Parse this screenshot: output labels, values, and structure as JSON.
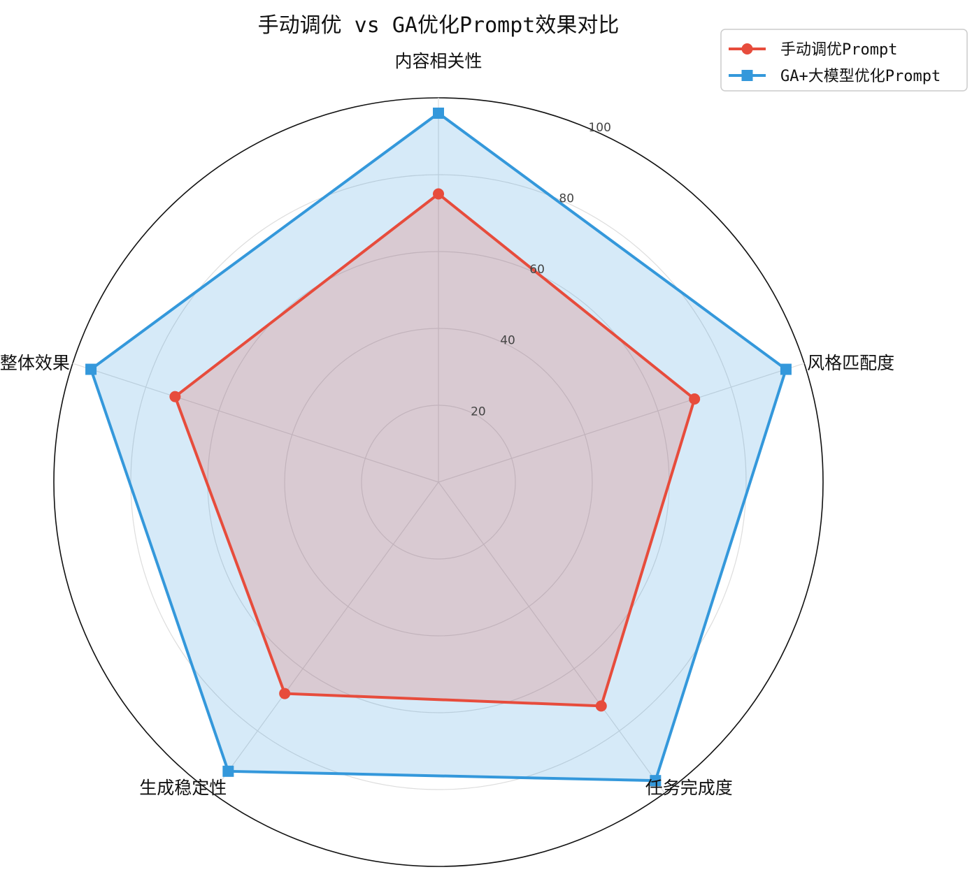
{
  "chart_data": {
    "type": "radar",
    "title": "手动调优 vs GA优化Prompt效果对比",
    "categories": [
      "内容相关性",
      "风格匹配度",
      "任务完成度",
      "生成稳定性",
      "整体效果"
    ],
    "rlim": [
      0,
      100
    ],
    "rticks": [
      20,
      40,
      60,
      80,
      100
    ],
    "rtick_labels": [
      "20",
      "40",
      "60",
      "80",
      "100"
    ],
    "grid": true,
    "legend_position": "top-right",
    "series": [
      {
        "name": "手动调优Prompt",
        "values": [
          75,
          70,
          72,
          68,
          72
        ],
        "color": "#e74c3c",
        "marker": "circle"
      },
      {
        "name": "GA+大模型优化Prompt",
        "values": [
          96,
          95,
          96,
          93,
          95
        ],
        "color": "#3498db",
        "fill": "#d5e8f6",
        "marker": "square"
      }
    ]
  }
}
